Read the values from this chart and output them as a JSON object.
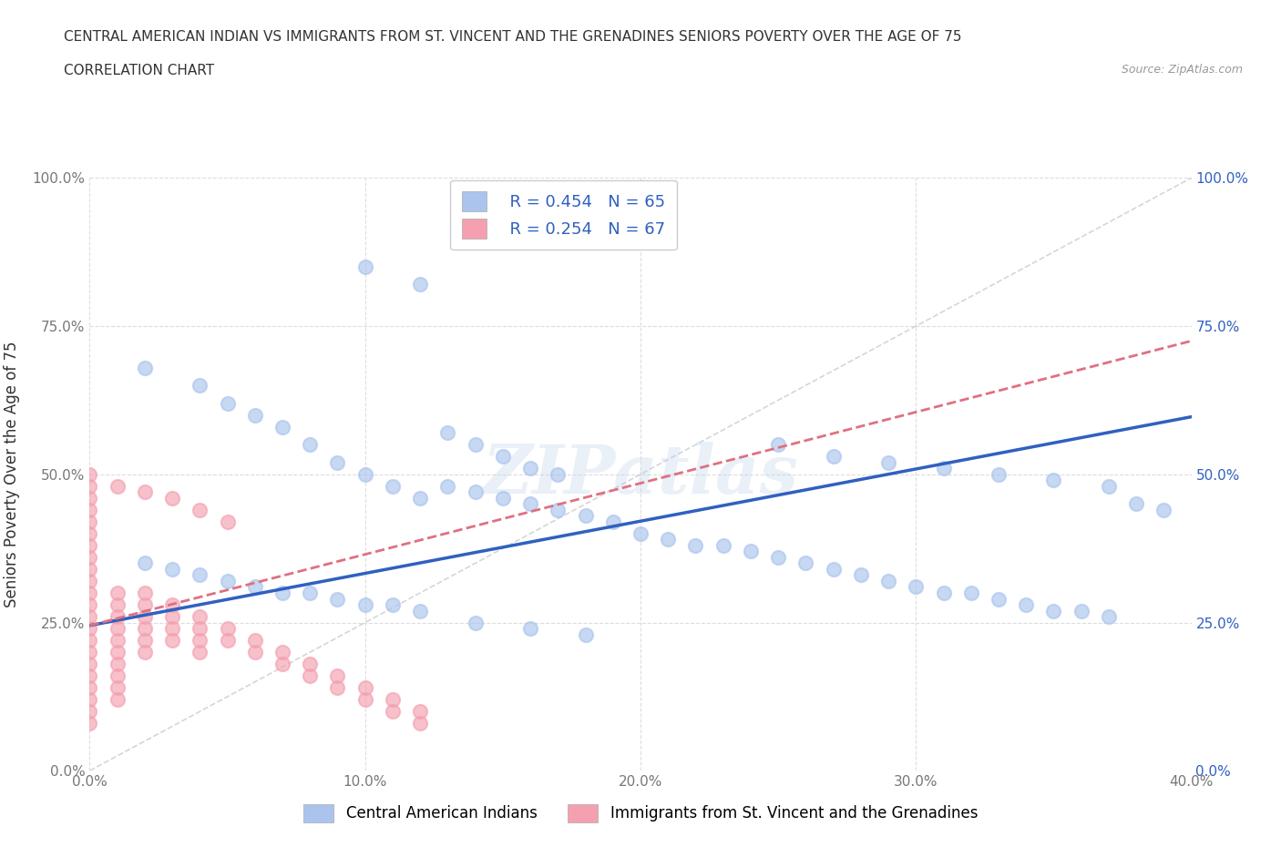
{
  "title_line1": "CENTRAL AMERICAN INDIAN VS IMMIGRANTS FROM ST. VINCENT AND THE GRENADINES SENIORS POVERTY OVER THE AGE OF 75",
  "title_line2": "CORRELATION CHART",
  "source_text": "Source: ZipAtlas.com",
  "watermark": "ZIPatlas",
  "ylabel": "Seniors Poverty Over the Age of 75",
  "xlim": [
    0.0,
    0.4
  ],
  "ylim": [
    0.0,
    1.0
  ],
  "xticks": [
    0.0,
    0.1,
    0.2,
    0.3,
    0.4
  ],
  "yticks": [
    0.0,
    0.25,
    0.5,
    0.75,
    1.0
  ],
  "xticklabels": [
    "0.0%",
    "10.0%",
    "20.0%",
    "30.0%",
    "40.0%"
  ],
  "yticklabels": [
    "0.0%",
    "25.0%",
    "50.0%",
    "75.0%",
    "100.0%"
  ],
  "series1_name": "Central American Indians",
  "series1_color": "#aac4ee",
  "series1_edge": "#aac4ee",
  "series1_R": 0.454,
  "series1_N": 65,
  "series1_x": [
    0.02,
    0.04,
    0.05,
    0.06,
    0.07,
    0.08,
    0.09,
    0.1,
    0.11,
    0.12,
    0.13,
    0.14,
    0.15,
    0.16,
    0.17,
    0.02,
    0.03,
    0.04,
    0.05,
    0.06,
    0.07,
    0.08,
    0.09,
    0.1,
    0.11,
    0.12,
    0.13,
    0.14,
    0.15,
    0.16,
    0.17,
    0.18,
    0.19,
    0.2,
    0.21,
    0.22,
    0.23,
    0.24,
    0.25,
    0.26,
    0.27,
    0.28,
    0.29,
    0.3,
    0.31,
    0.32,
    0.33,
    0.34,
    0.35,
    0.36,
    0.37,
    0.38,
    0.39,
    0.25,
    0.27,
    0.29,
    0.31,
    0.33,
    0.35,
    0.37,
    0.1,
    0.12,
    0.14,
    0.16,
    0.18
  ],
  "series1_y": [
    0.68,
    0.65,
    0.62,
    0.6,
    0.58,
    0.55,
    0.52,
    0.5,
    0.48,
    0.46,
    0.57,
    0.55,
    0.53,
    0.51,
    0.5,
    0.35,
    0.34,
    0.33,
    0.32,
    0.31,
    0.3,
    0.3,
    0.29,
    0.28,
    0.28,
    0.27,
    0.48,
    0.47,
    0.46,
    0.45,
    0.44,
    0.43,
    0.42,
    0.4,
    0.39,
    0.38,
    0.38,
    0.37,
    0.36,
    0.35,
    0.34,
    0.33,
    0.32,
    0.31,
    0.3,
    0.3,
    0.29,
    0.28,
    0.27,
    0.27,
    0.26,
    0.45,
    0.44,
    0.55,
    0.53,
    0.52,
    0.51,
    0.5,
    0.49,
    0.48,
    0.85,
    0.82,
    0.25,
    0.24,
    0.23
  ],
  "series2_name": "Immigrants from St. Vincent and the Grenadines",
  "series2_color": "#f4a0b0",
  "series2_edge": "#f4a0b0",
  "series2_R": 0.254,
  "series2_N": 67,
  "series2_x": [
    0.0,
    0.0,
    0.0,
    0.0,
    0.0,
    0.0,
    0.0,
    0.0,
    0.0,
    0.0,
    0.0,
    0.0,
    0.0,
    0.0,
    0.0,
    0.0,
    0.0,
    0.0,
    0.0,
    0.0,
    0.01,
    0.01,
    0.01,
    0.01,
    0.01,
    0.01,
    0.01,
    0.01,
    0.01,
    0.01,
    0.02,
    0.02,
    0.02,
    0.02,
    0.02,
    0.02,
    0.03,
    0.03,
    0.03,
    0.03,
    0.04,
    0.04,
    0.04,
    0.04,
    0.05,
    0.05,
    0.06,
    0.06,
    0.07,
    0.07,
    0.08,
    0.08,
    0.09,
    0.09,
    0.1,
    0.1,
    0.11,
    0.11,
    0.12,
    0.12,
    0.0,
    0.0,
    0.01,
    0.02,
    0.03,
    0.04,
    0.05
  ],
  "series2_y": [
    0.5,
    0.48,
    0.46,
    0.44,
    0.42,
    0.4,
    0.38,
    0.36,
    0.34,
    0.32,
    0.3,
    0.28,
    0.26,
    0.24,
    0.22,
    0.2,
    0.18,
    0.16,
    0.14,
    0.12,
    0.3,
    0.28,
    0.26,
    0.24,
    0.22,
    0.2,
    0.18,
    0.16,
    0.14,
    0.12,
    0.3,
    0.28,
    0.26,
    0.24,
    0.22,
    0.2,
    0.28,
    0.26,
    0.24,
    0.22,
    0.26,
    0.24,
    0.22,
    0.2,
    0.24,
    0.22,
    0.22,
    0.2,
    0.2,
    0.18,
    0.18,
    0.16,
    0.16,
    0.14,
    0.14,
    0.12,
    0.12,
    0.1,
    0.1,
    0.08,
    0.1,
    0.08,
    0.48,
    0.47,
    0.46,
    0.44,
    0.42
  ],
  "trend1_color": "#3060c0",
  "trend1_intercept": 0.245,
  "trend1_slope": 0.88,
  "trend2_color": "#e07080",
  "trend2_intercept": 0.245,
  "trend2_slope": 1.2,
  "ref_line_color": "#cccccc",
  "bg_color": "#ffffff",
  "grid_color": "#dddddd"
}
